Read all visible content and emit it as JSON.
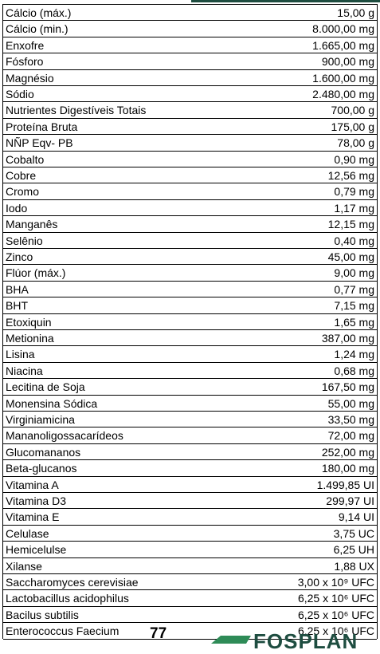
{
  "table": {
    "rows": [
      [
        "Cálcio (máx.)",
        "15,00 g"
      ],
      [
        "Cálcio (min.)",
        "8.000,00 mg"
      ],
      [
        "Enxofre",
        "1.665,00 mg"
      ],
      [
        "Fósforo",
        "900,00 mg"
      ],
      [
        "Magnésio",
        "1.600,00 mg"
      ],
      [
        "Sódio",
        "2.480,00 mg"
      ],
      [
        "Nutrientes Digestíveis Totais",
        "700,00 g"
      ],
      [
        "Proteína Bruta",
        "175,00 g"
      ],
      [
        "NÑP Eqv- PB",
        "78,00 g"
      ],
      [
        "Cobalto",
        "0,90 mg"
      ],
      [
        "Cobre",
        "12,56 mg"
      ],
      [
        "Cromo",
        "0,79 mg"
      ],
      [
        "Iodo",
        "1,17 mg"
      ],
      [
        "Manganês",
        "12,15 mg"
      ],
      [
        "Selênio",
        "0,40 mg"
      ],
      [
        "Zinco",
        "45,00 mg"
      ],
      [
        "Flúor (máx.)",
        "9,00 mg"
      ],
      [
        "BHA",
        "0,77 mg"
      ],
      [
        "BHT",
        "7,15 mg"
      ],
      [
        "Etoxiquin",
        "1,65 mg"
      ],
      [
        "Metionina",
        "387,00 mg"
      ],
      [
        "Lisina",
        "1,24 mg"
      ],
      [
        "Niacina",
        "0,68 mg"
      ],
      [
        "Lecitina de Soja",
        "167,50 mg"
      ],
      [
        "Monensina Sódica",
        "55,00 mg"
      ],
      [
        "Virginiamicina",
        "33,50 mg"
      ],
      [
        "Mananoligossacarídeos",
        "72,00 mg"
      ],
      [
        "Glucomananos",
        "252,00 mg"
      ],
      [
        "Beta-glucanos",
        "180,00 mg"
      ],
      [
        "Vitamina A",
        "1.499,85 UI"
      ],
      [
        "Vitamina D3",
        "299,97 UI"
      ],
      [
        "Vitamina E",
        "9,14 UI"
      ],
      [
        "Celulase",
        "3,75 UC"
      ],
      [
        "Hemicelulse",
        "6,25 UH"
      ],
      [
        "Xilanse",
        "1,88 UX"
      ],
      [
        "Saccharomyces cerevisiae",
        "3,00 x 10⁹ UFC"
      ],
      [
        "Lactobacillus acidophilus",
        "6,25 x 10⁶ UFC"
      ],
      [
        "Bacilus subtilis",
        "6,25 x 10⁶ UFC"
      ],
      [
        "Enterococcus Faecium",
        "6,25 x 10⁶ UFC"
      ]
    ]
  },
  "footer": {
    "page_number": "77",
    "logo": "FOSPLAN"
  }
}
